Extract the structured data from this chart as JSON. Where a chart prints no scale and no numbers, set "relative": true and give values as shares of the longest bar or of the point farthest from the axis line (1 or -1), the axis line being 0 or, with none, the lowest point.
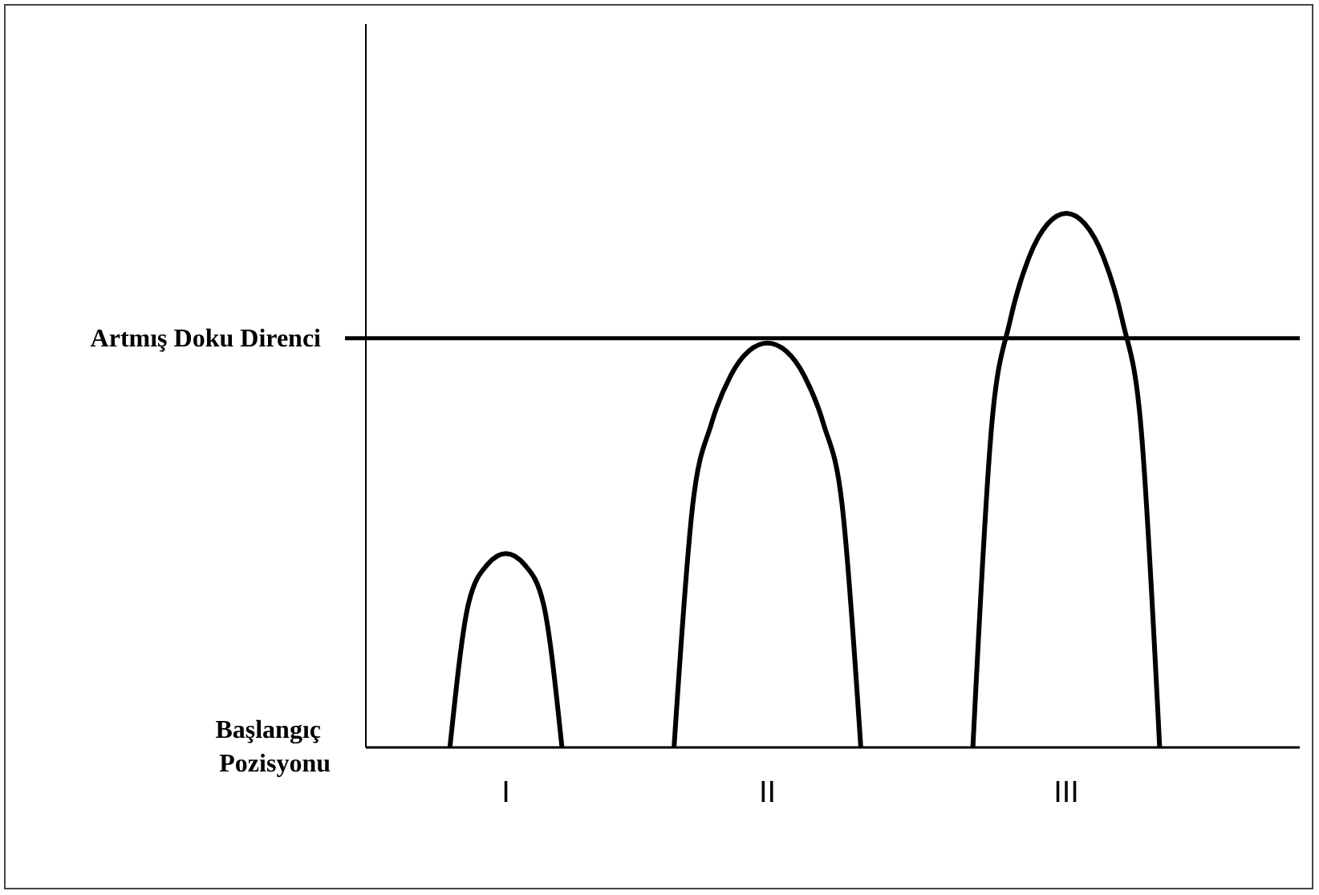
{
  "chart_data": {
    "type": "line",
    "relative": true,
    "ylabel": "Başlangıç Pozisyonu",
    "tick_labels": "x",
    "marker": "none",
    "line_style": "solid",
    "grid": false,
    "categories": [
      null,
      null,
      null,
      null,
      null,
      null,
      null,
      "I",
      null,
      null,
      null,
      null,
      null,
      null,
      null,
      null,
      null,
      null,
      null,
      null,
      null,
      "II",
      null,
      null,
      null,
      null,
      null,
      null,
      null,
      null,
      null,
      null,
      null,
      null,
      null,
      null,
      null,
      "III",
      null,
      null,
      null,
      null,
      null,
      null,
      null,
      null,
      null,
      null,
      null,
      null
    ],
    "series": [
      {
        "color": "#000000",
        "values": [
          null,
          null,
          null,
          null,
          0,
          0.27,
          0.342,
          0.363,
          0.342,
          0.27,
          0,
          null,
          null,
          null,
          null,
          null,
          null,
          null,
          null,
          null,
          null,
          null,
          null,
          null,
          null,
          null,
          null,
          null,
          null,
          null,
          null,
          null,
          null,
          null,
          null,
          null,
          null,
          null,
          null,
          null,
          null,
          null,
          null,
          null,
          null,
          null,
          null,
          null,
          null,
          null
        ]
      },
      {
        "color": "#000000",
        "values": [
          null,
          null,
          null,
          null,
          null,
          null,
          null,
          null,
          null,
          null,
          null,
          null,
          null,
          null,
          null,
          null,
          0,
          0.454,
          0.606,
          0.694,
          0.742,
          0.757,
          0.742,
          0.694,
          0.606,
          0.454,
          0,
          null,
          null,
          null,
          null,
          null,
          null,
          null,
          null,
          null,
          null,
          null,
          null,
          null,
          null,
          null,
          null,
          null,
          null,
          null,
          null,
          null,
          null,
          null
        ]
      },
      {
        "color": "#000000",
        "values": [
          null,
          null,
          null,
          null,
          null,
          null,
          null,
          null,
          null,
          null,
          null,
          null,
          null,
          null,
          null,
          null,
          null,
          null,
          null,
          null,
          null,
          null,
          null,
          null,
          null,
          null,
          null,
          null,
          null,
          null,
          null,
          null,
          0,
          0.6,
          0.8,
          0.917,
          0.98,
          1,
          0.98,
          0.917,
          0.8,
          0.6,
          0,
          null,
          null,
          null,
          null,
          null,
          null,
          null
        ]
      }
    ],
    "ref_lines": [
      {
        "axis": "y",
        "value": 0.766,
        "label": "Artmış Doku Direnci",
        "color": "#000000"
      }
    ]
  }
}
